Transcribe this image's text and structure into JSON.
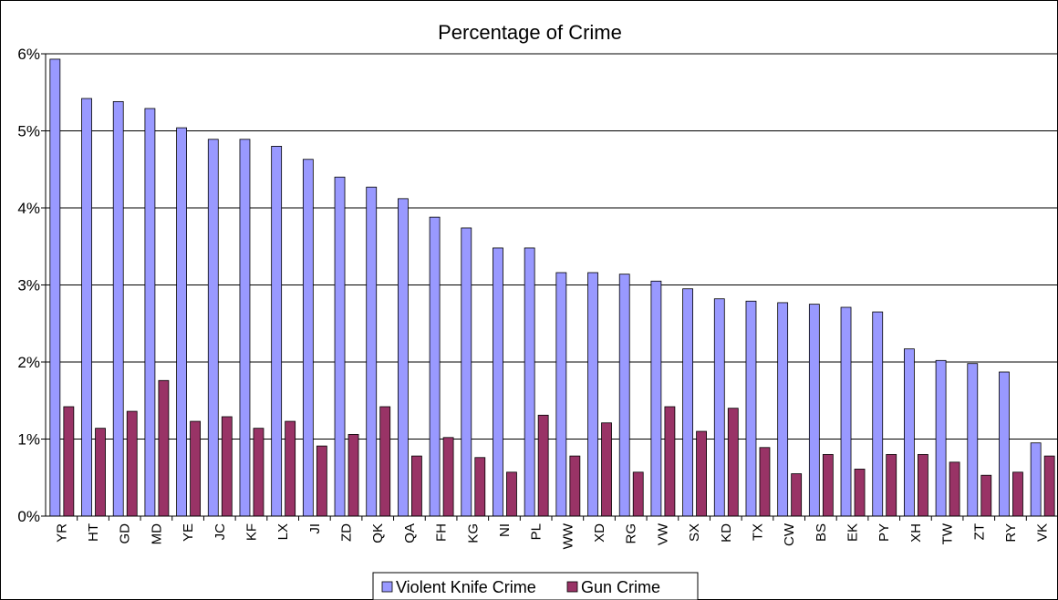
{
  "chart_data": {
    "type": "bar",
    "title": "Percentage of Crime",
    "xlabel": "",
    "ylabel": "",
    "ylim": [
      0,
      6
    ],
    "y_ticks": [
      "0%",
      "1%",
      "2%",
      "3%",
      "4%",
      "5%",
      "6%"
    ],
    "grid": true,
    "legend_position": "bottom",
    "categories": [
      "YR",
      "HT",
      "GD",
      "MD",
      "YE",
      "JC",
      "KF",
      "LX",
      "JI",
      "ZD",
      "QK",
      "QA",
      "FH",
      "KG",
      "NI",
      "PL",
      "WW",
      "XD",
      "RG",
      "VW",
      "SX",
      "KD",
      "TX",
      "CW",
      "BS",
      "EK",
      "PY",
      "XH",
      "TW",
      "ZT",
      "RY",
      "VK"
    ],
    "series": [
      {
        "name": "Violent Knife Crime",
        "color": "#9999FF",
        "values": [
          5.93,
          5.42,
          5.38,
          5.29,
          5.04,
          4.89,
          4.89,
          4.8,
          4.63,
          4.4,
          4.27,
          4.12,
          3.88,
          3.74,
          3.48,
          3.48,
          3.16,
          3.16,
          3.14,
          3.05,
          2.95,
          2.82,
          2.79,
          2.77,
          2.75,
          2.71,
          2.65,
          2.17,
          2.02,
          1.98,
          1.87,
          0.95
        ]
      },
      {
        "name": "Gun Crime",
        "color": "#993366",
        "values": [
          1.42,
          1.14,
          1.36,
          1.76,
          1.23,
          1.29,
          1.14,
          1.23,
          0.91,
          1.06,
          1.42,
          0.78,
          1.02,
          0.76,
          0.57,
          1.31,
          0.78,
          1.21,
          0.57,
          1.42,
          1.1,
          1.4,
          0.89,
          0.55,
          0.8,
          0.61,
          0.8,
          0.8,
          0.7,
          0.53,
          0.57,
          0.78
        ]
      }
    ]
  }
}
